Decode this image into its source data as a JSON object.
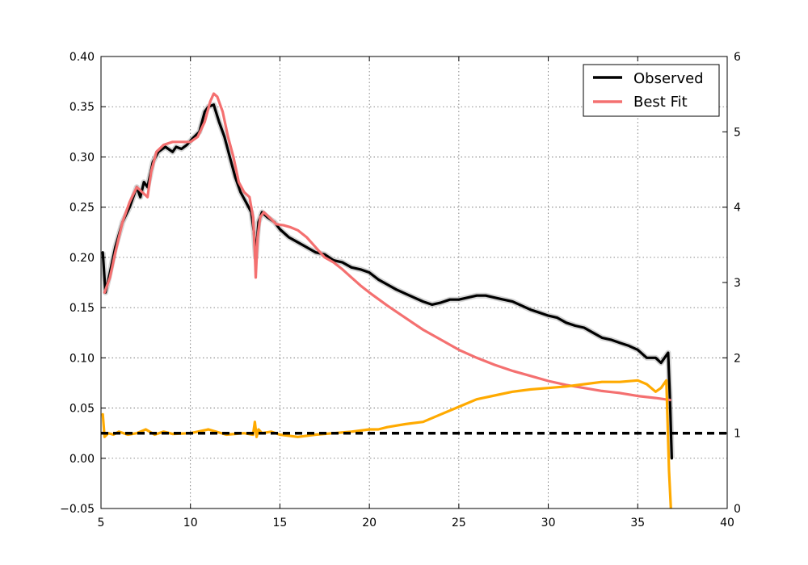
{
  "chart_data": {
    "type": "line",
    "title": "",
    "xlabel": "",
    "ylabel": "",
    "xlim": [
      5,
      40
    ],
    "ylim": [
      -0.05,
      0.4
    ],
    "y2lim": [
      0,
      6
    ],
    "grid": true,
    "legend_position": "top-right",
    "x_ticks": [
      "5",
      "10",
      "15",
      "20",
      "25",
      "30",
      "35",
      "40"
    ],
    "y_ticks": [
      "−0.05",
      "0.00",
      "0.05",
      "0.10",
      "0.15",
      "0.20",
      "0.25",
      "0.30",
      "0.35",
      "0.40"
    ],
    "y2_ticks": [
      "0",
      "1",
      "2",
      "3",
      "4",
      "5",
      "6"
    ],
    "legend": [
      {
        "label": "Observed",
        "color": "#000000"
      },
      {
        "label": "Best Fit",
        "color": "#f47070"
      }
    ],
    "series": [
      {
        "name": "Observed",
        "axis": "left",
        "color": "#000000",
        "x": [
          5.1,
          5.25,
          5.5,
          5.8,
          6.2,
          6.6,
          7.0,
          7.2,
          7.4,
          7.6,
          7.9,
          8.2,
          8.6,
          9.0,
          9.2,
          9.5,
          9.8,
          10.1,
          10.5,
          10.8,
          11.0,
          11.3,
          11.6,
          11.9,
          12.2,
          12.5,
          12.8,
          13.1,
          13.4,
          13.55,
          13.65,
          13.8,
          14.0,
          14.3,
          14.7,
          15.0,
          15.5,
          16.0,
          16.5,
          17.0,
          17.5,
          18.0,
          18.5,
          19.0,
          19.5,
          20.0,
          20.5,
          21.0,
          21.5,
          22.0,
          22.5,
          23.0,
          23.5,
          24.0,
          24.5,
          25.0,
          25.5,
          26.0,
          26.5,
          27.0,
          27.5,
          28.0,
          28.5,
          29.0,
          29.5,
          30.0,
          30.5,
          31.0,
          31.5,
          32.0,
          32.5,
          33.0,
          33.5,
          34.0,
          34.5,
          35.0,
          35.5,
          36.0,
          36.3,
          36.5,
          36.7,
          36.8,
          36.9
        ],
        "y": [
          0.205,
          0.165,
          0.185,
          0.21,
          0.235,
          0.25,
          0.27,
          0.26,
          0.275,
          0.27,
          0.295,
          0.305,
          0.31,
          0.305,
          0.31,
          0.308,
          0.312,
          0.318,
          0.325,
          0.345,
          0.35,
          0.352,
          0.335,
          0.32,
          0.3,
          0.28,
          0.265,
          0.255,
          0.245,
          0.225,
          0.2,
          0.235,
          0.245,
          0.24,
          0.235,
          0.228,
          0.22,
          0.215,
          0.21,
          0.205,
          0.203,
          0.197,
          0.195,
          0.19,
          0.188,
          0.185,
          0.178,
          0.173,
          0.168,
          0.164,
          0.16,
          0.156,
          0.153,
          0.155,
          0.158,
          0.158,
          0.16,
          0.162,
          0.162,
          0.16,
          0.158,
          0.156,
          0.152,
          0.148,
          0.145,
          0.142,
          0.14,
          0.135,
          0.132,
          0.13,
          0.125,
          0.12,
          0.118,
          0.115,
          0.112,
          0.108,
          0.1,
          0.1,
          0.095,
          0.1,
          0.105,
          0.06,
          0.0
        ]
      },
      {
        "name": "Best Fit",
        "axis": "left",
        "color": "#f47070",
        "x": [
          5.2,
          5.5,
          5.8,
          6.2,
          6.6,
          7.0,
          7.3,
          7.6,
          7.8,
          8.1,
          8.5,
          9.0,
          9.5,
          10.0,
          10.4,
          10.8,
          11.1,
          11.3,
          11.5,
          11.8,
          12.1,
          12.4,
          12.7,
          13.0,
          13.3,
          13.5,
          13.6,
          13.65,
          13.75,
          13.9,
          14.1,
          14.4,
          14.8,
          15.2,
          15.6,
          16.0,
          16.5,
          17.0,
          17.5,
          18.0,
          18.5,
          19.0,
          19.5,
          20.0,
          21.0,
          22.0,
          23.0,
          24.0,
          25.0,
          26.0,
          27.0,
          28.0,
          29.0,
          30.0,
          31.0,
          32.0,
          33.0,
          34.0,
          35.0,
          36.0,
          36.8
        ],
        "y": [
          0.165,
          0.18,
          0.205,
          0.235,
          0.255,
          0.27,
          0.265,
          0.26,
          0.285,
          0.305,
          0.312,
          0.315,
          0.315,
          0.315,
          0.32,
          0.335,
          0.355,
          0.363,
          0.36,
          0.345,
          0.32,
          0.3,
          0.275,
          0.265,
          0.26,
          0.24,
          0.205,
          0.18,
          0.22,
          0.24,
          0.245,
          0.24,
          0.233,
          0.232,
          0.23,
          0.227,
          0.22,
          0.21,
          0.2,
          0.195,
          0.188,
          0.18,
          0.172,
          0.165,
          0.152,
          0.14,
          0.128,
          0.118,
          0.108,
          0.1,
          0.093,
          0.087,
          0.082,
          0.077,
          0.073,
          0.07,
          0.067,
          0.065,
          0.062,
          0.06,
          0.058
        ]
      },
      {
        "name": "",
        "axis": "right",
        "color": "#ffaa00",
        "x": [
          5.1,
          5.2,
          5.4,
          5.7,
          6.0,
          6.5,
          7.0,
          7.5,
          8.0,
          8.5,
          9.0,
          10.0,
          11.0,
          12.0,
          13.0,
          13.5,
          13.6,
          13.7,
          13.8,
          14.0,
          14.5,
          15.0,
          16.0,
          17.0,
          18.0,
          19.0,
          20.0,
          20.5,
          21.0,
          21.5,
          22.0,
          23.0,
          24.0,
          25.0,
          26.0,
          27.0,
          28.0,
          29.0,
          30.0,
          31.0,
          32.0,
          33.0,
          34.0,
          35.0,
          35.5,
          36.0,
          36.3,
          36.6,
          36.75,
          36.85
        ],
        "y": [
          1.25,
          0.95,
          1.0,
          0.98,
          1.02,
          0.98,
          1.0,
          1.05,
          0.98,
          1.02,
          0.99,
          1.0,
          1.05,
          0.98,
          1.0,
          0.98,
          1.15,
          0.95,
          1.05,
          1.0,
          1.02,
          0.98,
          0.95,
          0.98,
          1.0,
          1.02,
          1.05,
          1.05,
          1.08,
          1.1,
          1.12,
          1.15,
          1.25,
          1.35,
          1.45,
          1.5,
          1.55,
          1.58,
          1.6,
          1.62,
          1.65,
          1.68,
          1.68,
          1.7,
          1.65,
          1.55,
          1.6,
          1.7,
          0.5,
          0.0
        ]
      },
      {
        "name": "",
        "axis": "right",
        "color": "#000000",
        "dashed": true,
        "x": [
          5,
          40
        ],
        "y": [
          1,
          1
        ]
      }
    ]
  }
}
